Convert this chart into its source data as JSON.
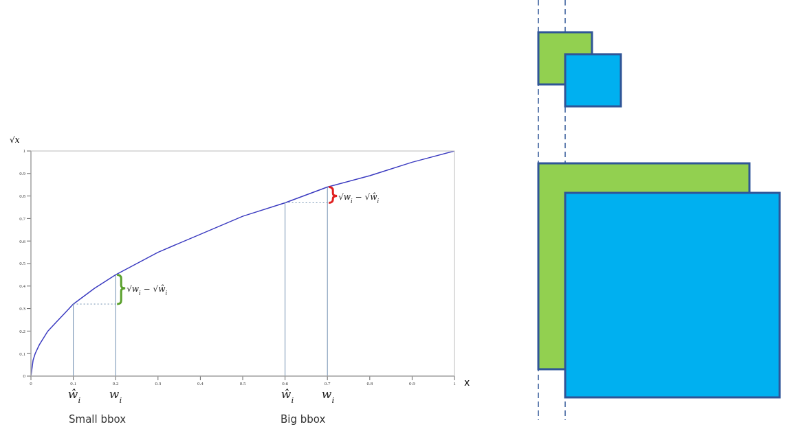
{
  "chart_data": {
    "type": "line",
    "xlabel": "x",
    "ylabel": "√x",
    "xlim": [
      0,
      1
    ],
    "ylim": [
      0,
      1
    ],
    "xticks": [
      0,
      0.1,
      0.2,
      0.3,
      0.4,
      0.5,
      0.6,
      0.7,
      0.8,
      0.9,
      1
    ],
    "yticks": [
      0,
      0.1,
      0.2,
      0.3,
      0.4,
      0.5,
      0.6,
      0.7,
      0.8,
      0.9,
      1
    ],
    "marker": "none",
    "line_style": "solid",
    "series": [
      {
        "color": "#3a3ac0",
        "x": [
          0,
          0.005,
          0.01,
          0.02,
          0.04,
          0.06,
          0.08,
          0.1,
          0.15,
          0.2,
          0.3,
          0.4,
          0.5,
          0.6,
          0.7,
          0.8,
          0.9,
          1
        ],
        "values": [
          0,
          0.07,
          0.1,
          0.14,
          0.2,
          0.24,
          0.28,
          0.32,
          0.39,
          0.45,
          0.55,
          0.63,
          0.71,
          0.77,
          0.84,
          0.89,
          0.95,
          1
        ]
      },
      {
        "color": "#6f8fb0",
        "x": [
          0.1,
          0.1
        ],
        "values": [
          0,
          0.32
        ]
      },
      {
        "color": "#6f8fb0",
        "x": [
          0.2,
          0.2
        ],
        "values": [
          0,
          0.45
        ]
      },
      {
        "color": "#6f8fb0",
        "x": [
          0.6,
          0.6
        ],
        "values": [
          0,
          0.77
        ]
      },
      {
        "color": "#6f8fb0",
        "x": [
          0.7,
          0.7
        ],
        "values": [
          0,
          0.84
        ]
      },
      {
        "color": "#6f8fb0",
        "x": [
          0.1,
          0.2
        ],
        "values": [
          0.32,
          0.32
        ],
        "line_style": "dotted"
      },
      {
        "color": "#6f8fb0",
        "x": [
          0.6,
          0.7
        ],
        "values": [
          0.77,
          0.77
        ],
        "line_style": "dotted"
      }
    ],
    "annotations": [
      {
        "text": "√w$_{i}$ − √ŵ$_{i}$",
        "x": 0.2,
        "y": 0.39
      },
      {
        "text": "√w$_{i}$ − √ŵ$_{i}$",
        "x": 0.7,
        "y": 0.8
      },
      "ŵ$_{i}$",
      "w$_{i}$",
      "ŵ$_{i}$",
      "w$_{i}$",
      "Small bbox",
      "Big bbox"
    ]
  }
}
